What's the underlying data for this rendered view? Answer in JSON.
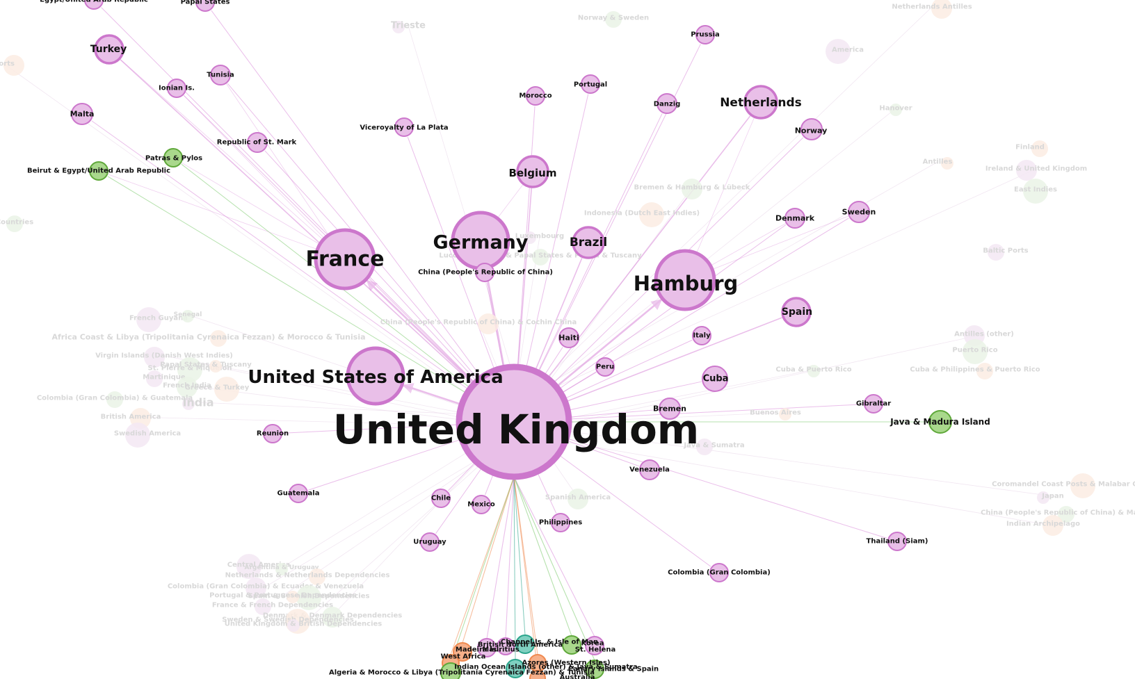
{
  "colors": {
    "node_fill": "#e9bfe8",
    "node_stroke": "#cc77cc",
    "green_fill": "#a9d88c",
    "green_stroke": "#5fa83a",
    "orange_fill": "#f7b08a",
    "orange_stroke": "#f08a50",
    "teal_fill": "#7fd0c0",
    "teal_stroke": "#2ba58c",
    "edge": "#d98ad9",
    "edge_green": "#79c96a"
  },
  "hub": {
    "label": "United Kingdom"
  },
  "nodes": [
    {
      "label": "France",
      "kind": "pink"
    },
    {
      "label": "Germany",
      "kind": "pink"
    },
    {
      "label": "Brazil",
      "kind": "pink"
    },
    {
      "label": "Hamburg",
      "kind": "pink"
    },
    {
      "label": "United States of America",
      "kind": "pink"
    },
    {
      "label": "Netherlands",
      "kind": "pink"
    },
    {
      "label": "Belgium",
      "kind": "pink"
    },
    {
      "label": "Spain",
      "kind": "pink"
    },
    {
      "label": "Turkey",
      "kind": "pink"
    },
    {
      "label": "Cuba",
      "kind": "pink"
    },
    {
      "label": "Prussia",
      "kind": "pink"
    },
    {
      "label": "Portugal",
      "kind": "pink"
    },
    {
      "label": "Morocco",
      "kind": "pink"
    },
    {
      "label": "Danzig",
      "kind": "pink"
    },
    {
      "label": "Norway",
      "kind": "pink"
    },
    {
      "label": "Denmark",
      "kind": "pink"
    },
    {
      "label": "Sweden",
      "kind": "pink"
    },
    {
      "label": "Tunisia",
      "kind": "pink"
    },
    {
      "label": "Ionian Is.",
      "kind": "pink"
    },
    {
      "label": "Malta",
      "kind": "pink"
    },
    {
      "label": "Republic of St. Mark",
      "kind": "pink"
    },
    {
      "label": "Patras & Pylos",
      "kind": "green"
    },
    {
      "label": "Beirut & Egypt/United Arab Republic",
      "kind": "green"
    },
    {
      "label": "Viceroyalty of La Plata",
      "kind": "pink"
    },
    {
      "label": "China (People's Republic of China)",
      "kind": "pink"
    },
    {
      "label": "Haiti",
      "kind": "pink"
    },
    {
      "label": "Italy",
      "kind": "pink"
    },
    {
      "label": "Peru",
      "kind": "pink"
    },
    {
      "label": "Bremen",
      "kind": "pink"
    },
    {
      "label": "Gibraltar",
      "kind": "pink"
    },
    {
      "label": "Java & Madura Island",
      "kind": "green"
    },
    {
      "label": "Venezuela",
      "kind": "pink"
    },
    {
      "label": "Reunion",
      "kind": "pink"
    },
    {
      "label": "Guatemala",
      "kind": "pink"
    },
    {
      "label": "Chile",
      "kind": "pink"
    },
    {
      "label": "Mexico",
      "kind": "pink"
    },
    {
      "label": "Philippines",
      "kind": "pink"
    },
    {
      "label": "Uruguay",
      "kind": "pink"
    },
    {
      "label": "Thailand (Siam)",
      "kind": "pink"
    },
    {
      "label": "Colombia (Gran Colombia)",
      "kind": "pink"
    },
    {
      "label": "Egypt/United Arab Republic",
      "kind": "pink"
    },
    {
      "label": "Papal States",
      "kind": "pink"
    }
  ],
  "bottom_cluster": [
    {
      "label": "Madeira Isl.",
      "kind": "orange"
    },
    {
      "label": "West Africa",
      "kind": "orange"
    },
    {
      "label": "Mauritius",
      "kind": "pink"
    },
    {
      "label": "British North America",
      "kind": "pink"
    },
    {
      "label": "Channel Is. & Isle of Man",
      "kind": "teal"
    },
    {
      "label": "Korea",
      "kind": "green"
    },
    {
      "label": "St. Helena",
      "kind": "pink"
    },
    {
      "label": "Azores (Western Isles)",
      "kind": "orange"
    },
    {
      "label": "Indian Ocean Islands (other) & Java & Sumatra",
      "kind": "teal"
    },
    {
      "label": "Canary Islands & Spain",
      "kind": "green"
    },
    {
      "label": "Algeria & Morocco & Libya (Tripolitania Cyrenaica Fezzan) & Tunisia",
      "kind": "green"
    },
    {
      "label": "Australia",
      "kind": "orange"
    }
  ],
  "faded_labels": [
    "Trieste",
    "Norway & Sweden",
    "Netherlands Antilles",
    "America",
    "Hanover",
    "Finland",
    "Ireland & United Kingdom",
    "East Indies",
    "Antilles",
    "Baltic Ports",
    "Bremen & Hamburg & Lübeck",
    "Indonesia (Dutch East Indies)",
    "Luxembourg",
    "Lucca & Modena & Papal States & Parma & Tuscany",
    "China (People's Republic of China) & Cochin China",
    "French Guyana",
    "Senegal",
    "Africa Coast & Libya (Tripolitania Cyrenaica Fezzan) & Morocco & Tunisia",
    "Virgin Islands (Danish West Indies)",
    "St. Pierre & Miquelon",
    "Papal States & Tuscany",
    "Martinique",
    "French India",
    "Greece & Turkey",
    "India",
    "Colombia (Gran Colombia) & Guatemala",
    "British America",
    "Swedish America",
    "Cuba & Puerto Rico",
    "Cuba & Philippines & Puerto Rico",
    "Antilles (other)",
    "Puerto Rico",
    "Buenos Aires",
    "Java & Sumatra",
    "Spanish America",
    "Coromandel Coast Posts & Malabar Coast",
    "Japan",
    "China (People's Republic of China) & Macao",
    "Indian Archipelago",
    "Central America",
    "Argentina & Uruguay",
    "Netherlands & Netherlands Dependencies",
    "Colombia (Gran Colombia) & Ecuador & Venezuela",
    "Spain & Spanish Dependencies",
    "Portugal & Portuguese Dependencies",
    "France & French Dependencies",
    "Denmark & Denmark Dependencies",
    "Sweden & Swedish Dependencies",
    "United Kingdom & British Dependencies",
    "Countries",
    "Ports"
  ]
}
